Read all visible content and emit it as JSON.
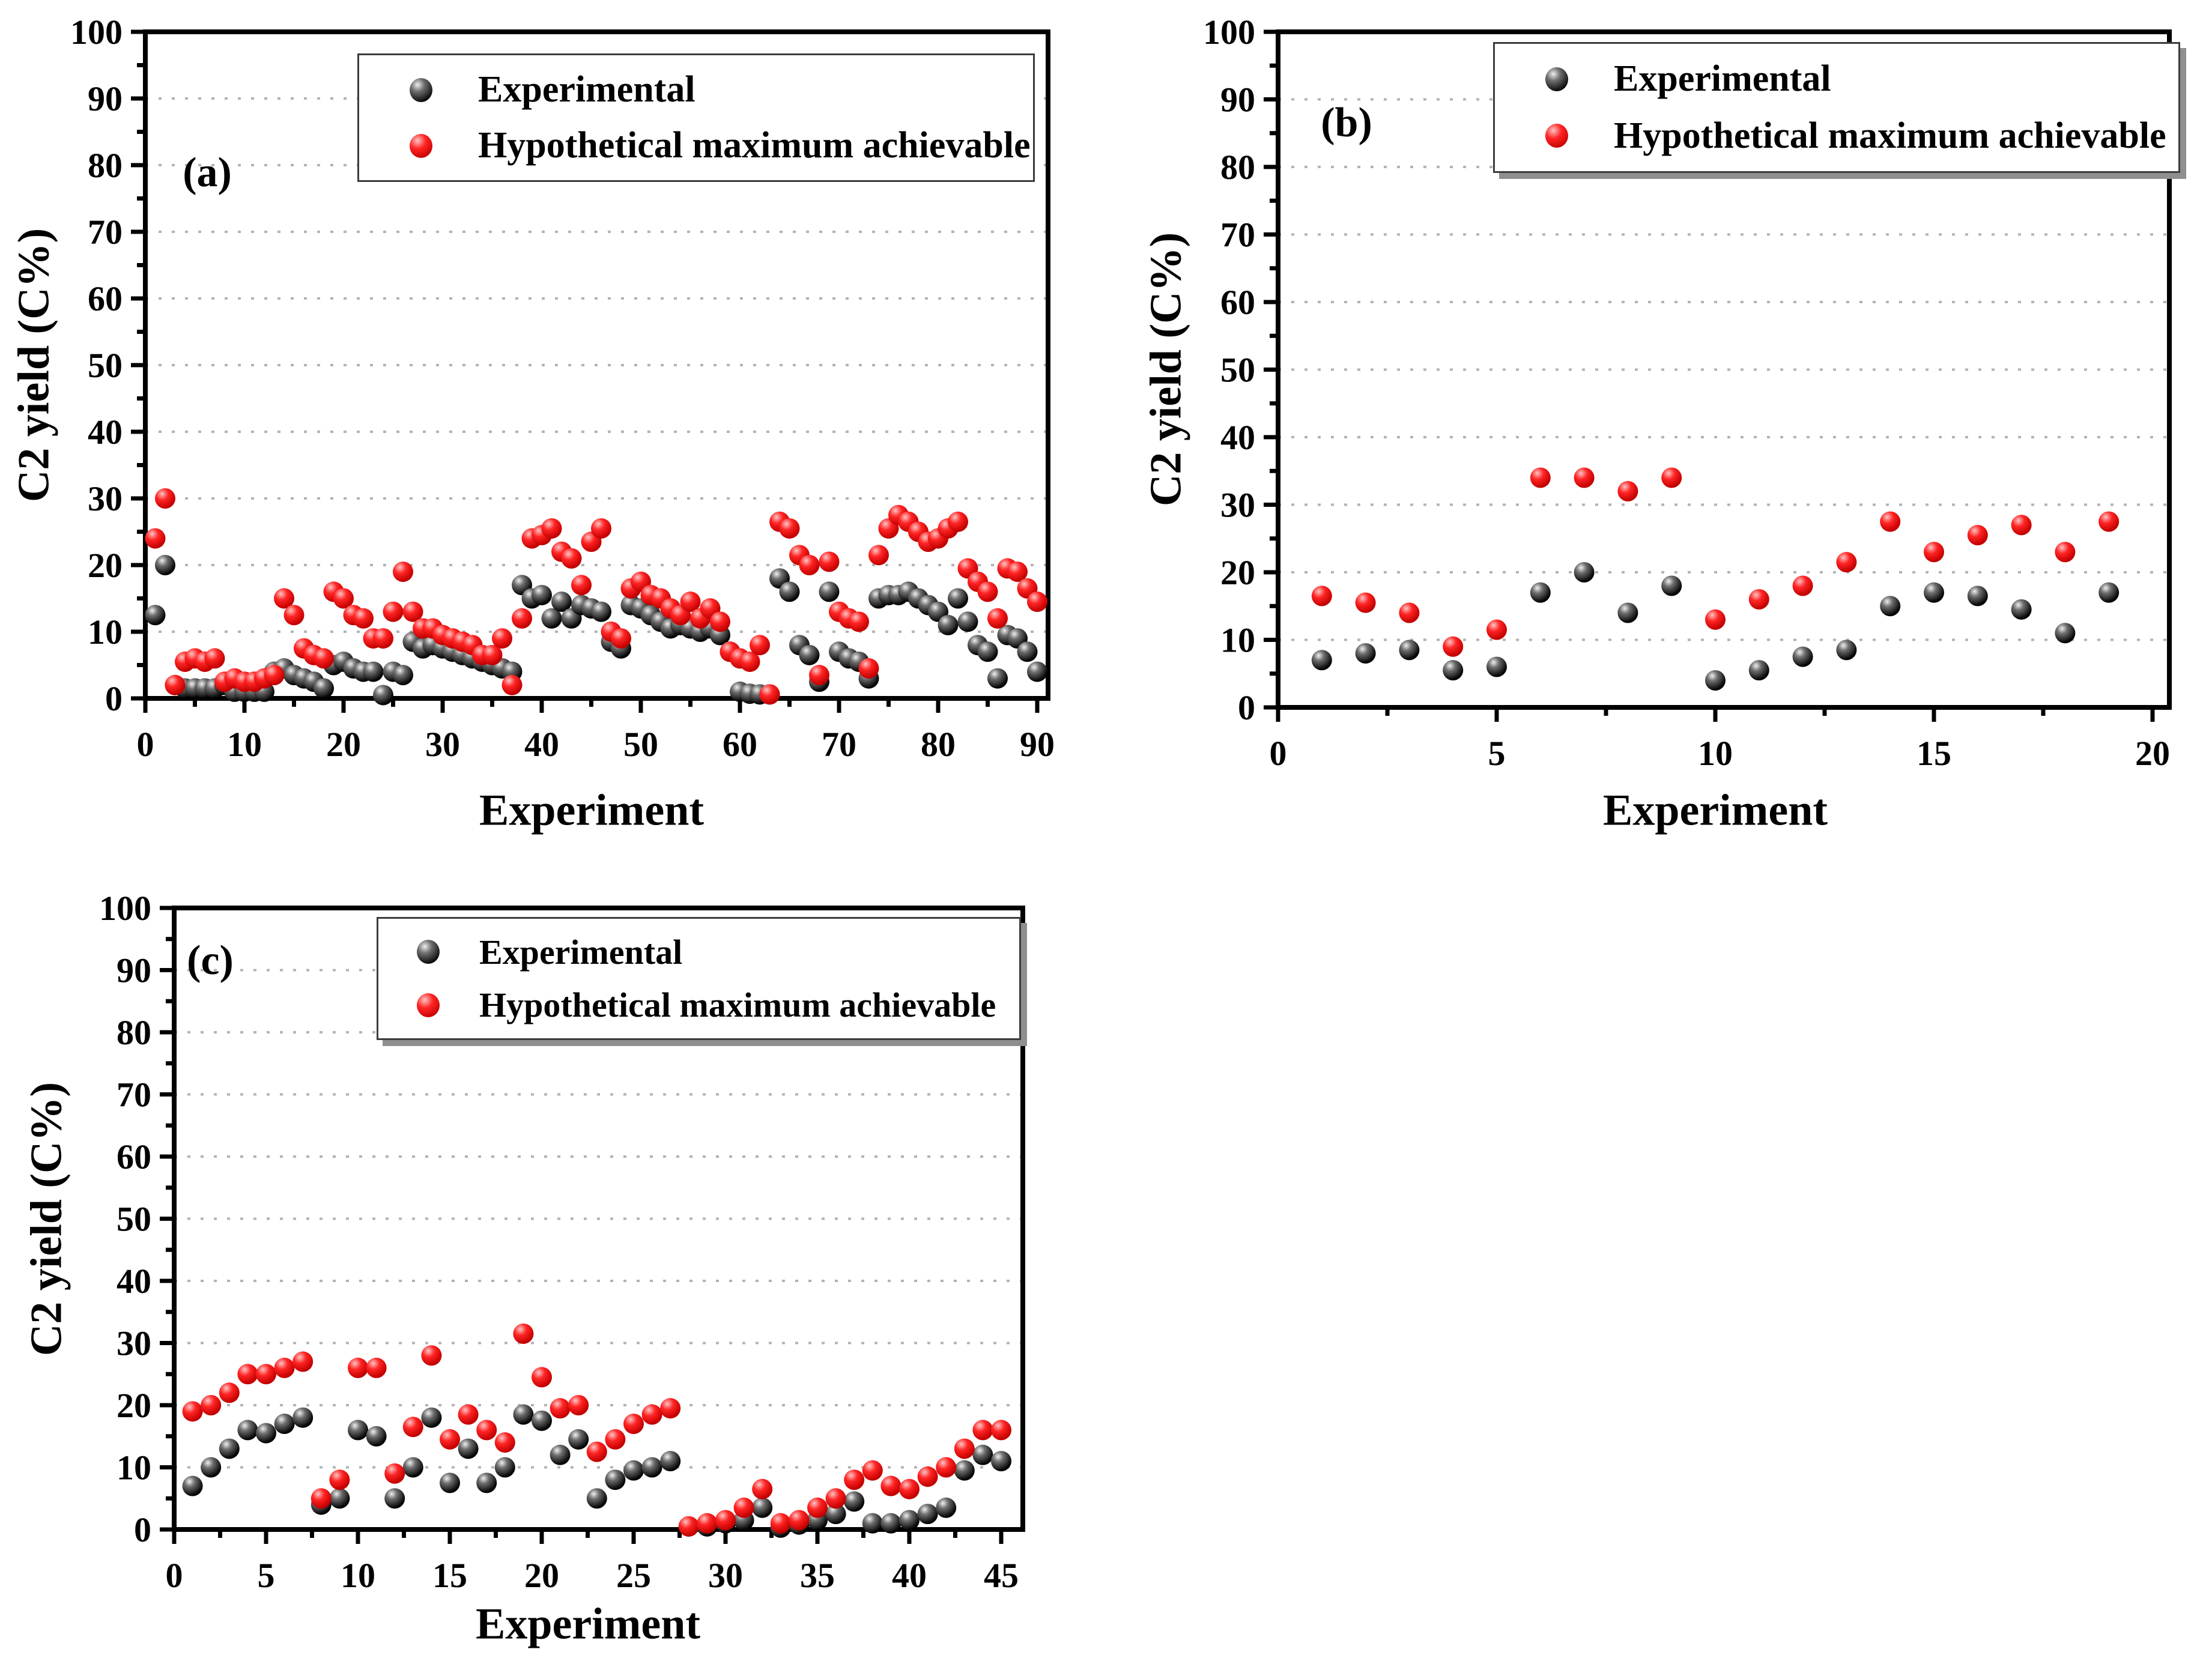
{
  "figure_title": "",
  "colors": {
    "experimental": "#0a0a0a",
    "hypothetical_max": "#ee0000",
    "axis": "#000000",
    "gridline": "#b3b3b3",
    "background": "#ffffff"
  },
  "chart_data": [
    {
      "panel_label": "(a)",
      "type": "scatter",
      "title": "",
      "xlabel": "Experiment",
      "ylabel": "C2 yield (C%)",
      "xlim": [
        0,
        90
      ],
      "ylim": [
        0,
        100
      ],
      "xticks": [
        0,
        10,
        20,
        30,
        40,
        50,
        60,
        70,
        80,
        90
      ],
      "yticks": [
        0,
        10,
        20,
        30,
        40,
        50,
        60,
        70,
        80,
        90,
        100
      ],
      "x_minor_step": 5,
      "y_minor_step": 5,
      "grid": "horizontal dotted at y=10..90",
      "legend_position": "top-center-right",
      "x_first": 1,
      "x_step": 1,
      "series": [
        {
          "name": "Experimental",
          "color": "#0a0a0a",
          "marker": "sphere",
          "values": [
            12.5,
            20,
            2,
            1.5,
            1.5,
            1.5,
            1.5,
            2,
            1,
            1,
            1,
            1,
            4,
            4.5,
            3.5,
            3,
            2.5,
            1.5,
            5,
            5.5,
            4.5,
            4,
            4,
            0.5,
            4,
            3.5,
            8.5,
            7.5,
            8,
            7.5,
            7,
            6.5,
            6,
            5.5,
            5,
            4.5,
            4,
            17,
            15,
            15.5,
            12,
            14.5,
            12,
            14,
            13.5,
            13,
            8.5,
            7.5,
            14,
            13.5,
            12.5,
            11.5,
            10.5,
            11,
            10.5,
            10,
            10.5,
            9.5,
            7,
            1,
            0.7,
            0.6,
            0.6,
            18,
            16,
            8,
            6.5,
            2.5,
            16,
            7,
            6,
            5.5,
            3,
            15,
            15.5,
            15.5,
            16,
            15,
            14,
            13,
            11,
            15,
            11.5,
            8,
            7,
            3,
            9.5,
            9,
            7,
            4
          ]
        },
        {
          "name": "Hypothetical maximum achievable",
          "color": "#ee0000",
          "marker": "sphere",
          "values": [
            24,
            30,
            2,
            5.5,
            6,
            5.5,
            6,
            2.5,
            3,
            2.5,
            2.5,
            3,
            3.5,
            15,
            12.5,
            7.5,
            6.5,
            6,
            16,
            15,
            12.5,
            12,
            9,
            9,
            13,
            19,
            13,
            10.5,
            10.5,
            9.5,
            9,
            8.5,
            8,
            6.5,
            6.5,
            9,
            2,
            12,
            24,
            24.5,
            25.5,
            22,
            21,
            17,
            23.5,
            25.5,
            10,
            9,
            16.5,
            17.5,
            15.5,
            15,
            13.5,
            12.5,
            14.5,
            12,
            13.5,
            11.5,
            7,
            6,
            5.5,
            8,
            0.6,
            26.5,
            25.5,
            21.5,
            20,
            3.5,
            20.5,
            13,
            12,
            11.5,
            4.5,
            21.5,
            25.5,
            27.5,
            26.5,
            25,
            23.5,
            24,
            25.5,
            26.5,
            19.5,
            17.5,
            16,
            12,
            19.5,
            19,
            16.5,
            14.5
          ]
        }
      ]
    },
    {
      "panel_label": "(b)",
      "type": "scatter",
      "title": "",
      "xlabel": "Experiment",
      "ylabel": "C2 yield (C%)",
      "xlim": [
        0,
        20
      ],
      "ylim": [
        0,
        100
      ],
      "xticks": [
        0,
        5,
        10,
        15,
        20
      ],
      "yticks": [
        0,
        10,
        20,
        30,
        40,
        50,
        60,
        70,
        80,
        90,
        100
      ],
      "x_minor_step": 2.5,
      "y_minor_step": 5,
      "grid": "horizontal dotted at y=10..90",
      "legend_position": "top-center-right",
      "x_first": 1,
      "x_step": 1,
      "series": [
        {
          "name": "Experimental",
          "color": "#0a0a0a",
          "marker": "sphere",
          "values": [
            7,
            8,
            8.5,
            5.5,
            6,
            17,
            20,
            14,
            18,
            4,
            5.5,
            7.5,
            8.5,
            15,
            17,
            16.5,
            14.5,
            11,
            17
          ]
        },
        {
          "name": "Hypothetical maximum achievable",
          "color": "#ee0000",
          "marker": "sphere",
          "values": [
            16.5,
            15.5,
            14,
            9,
            11.5,
            34,
            34,
            32,
            34,
            13,
            16,
            18,
            21.5,
            27.5,
            23,
            25.5,
            27,
            23,
            27.5
          ]
        }
      ]
    },
    {
      "panel_label": "(c)",
      "type": "scatter",
      "title": "",
      "xlabel": "Experiment",
      "ylabel": "C2 yield (C%)",
      "xlim": [
        0,
        45
      ],
      "ylim": [
        0,
        100
      ],
      "xticks": [
        0,
        5,
        10,
        15,
        20,
        25,
        30,
        35,
        40,
        45
      ],
      "yticks": [
        0,
        10,
        20,
        30,
        40,
        50,
        60,
        70,
        80,
        90,
        100
      ],
      "x_minor_step": 2.5,
      "y_minor_step": 5,
      "grid": "horizontal dotted at y=10..90",
      "legend_position": "top-center-right",
      "x_first": 1,
      "x_step": 1,
      "series": [
        {
          "name": "Experimental",
          "color": "#0a0a0a",
          "marker": "sphere",
          "values": [
            7,
            10,
            13,
            16,
            15.5,
            17,
            18,
            4,
            5,
            16,
            15,
            5,
            10,
            18,
            7.5,
            13,
            7.5,
            10,
            18.5,
            17.5,
            12,
            14.5,
            5,
            8,
            9.5,
            10,
            11,
            0.5,
            0.5,
            1,
            1.5,
            3.5,
            0.3,
            0.8,
            1.5,
            2.5,
            4.5,
            1,
            1,
            1.5,
            2.5,
            3.5,
            9.5,
            12,
            11
          ]
        },
        {
          "name": "Hypothetical maximum achievable",
          "color": "#ee0000",
          "marker": "sphere",
          "values": [
            19,
            20,
            22,
            25,
            25,
            26,
            27,
            5,
            8,
            26,
            26,
            9,
            16.5,
            28,
            14.5,
            18.5,
            16,
            14,
            31.5,
            24.5,
            19.5,
            20,
            12.5,
            14.5,
            17,
            18.5,
            19.5,
            0.5,
            1,
            1.5,
            3.5,
            6.5,
            1,
            1.5,
            3.5,
            5,
            8,
            9.5,
            7,
            6.5,
            8.5,
            10,
            13,
            16,
            16
          ]
        }
      ]
    }
  ]
}
